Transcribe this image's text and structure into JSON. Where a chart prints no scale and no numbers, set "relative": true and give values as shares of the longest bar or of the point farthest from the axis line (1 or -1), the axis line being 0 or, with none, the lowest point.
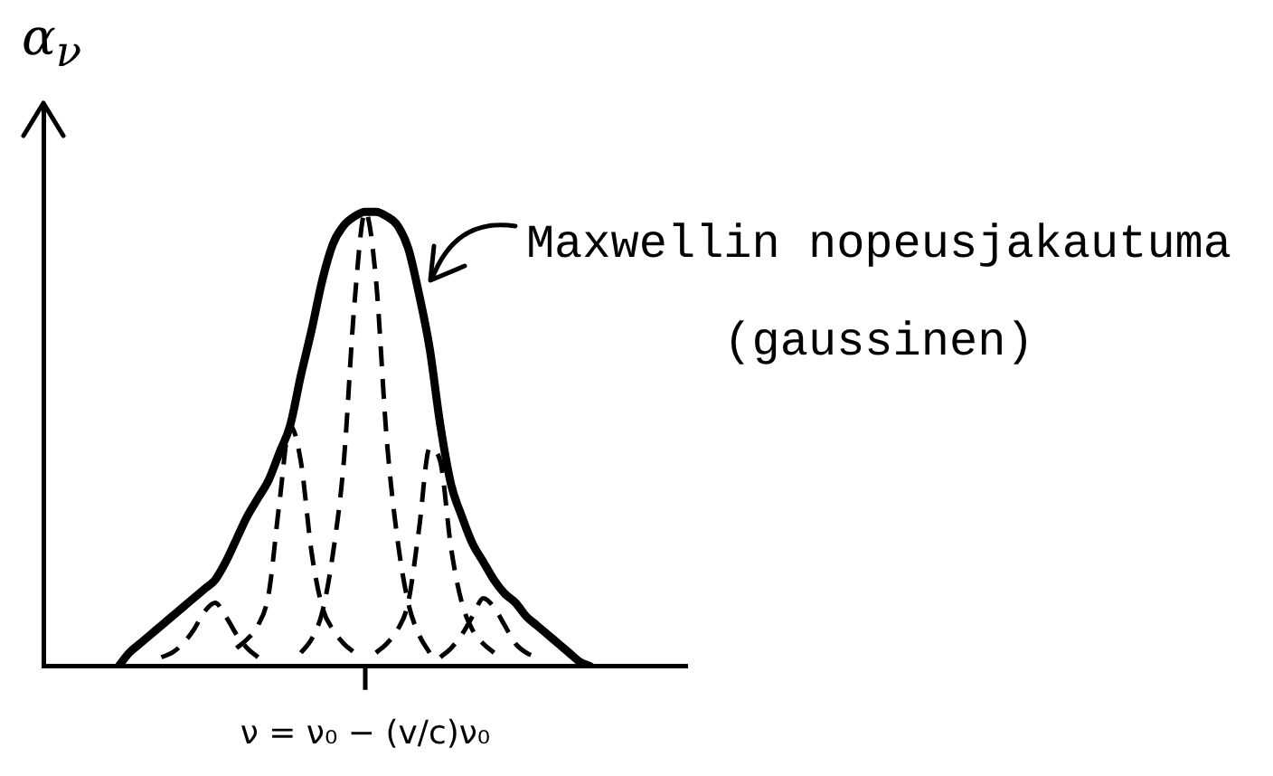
{
  "chart_data": {
    "type": "line",
    "relative": true,
    "ylabel": "α$_{ν}$",
    "xlabel": "ν = ν₀ − (v/c)ν₀",
    "annotations": [
      "Maxwellin nopeusjakautuma (gaussinen)"
    ],
    "marker": "none",
    "legend": false,
    "categories": [
      null,
      null,
      null,
      null,
      null,
      null,
      null,
      null,
      null,
      null,
      null,
      null,
      null,
      null,
      null,
      null,
      null,
      null,
      null,
      null,
      null,
      null,
      null,
      null,
      null,
      null,
      null,
      null,
      null,
      null,
      null,
      null,
      null,
      null,
      null,
      null,
      null,
      null,
      null,
      null,
      null,
      null,
      null,
      null,
      null,
      null,
      null,
      null,
      null,
      null,
      null,
      null,
      null,
      null,
      null,
      null,
      null,
      null,
      null,
      null,
      null
    ],
    "series": [
      {
        "color": "#000000",
        "line_style": "dashed",
        "values": [
          null,
          null,
          null,
          null,
          null,
          null,
          null,
          null,
          null,
          null,
          null,
          0.02,
          0.03,
          0.05,
          0.08,
          0.12,
          0.14,
          0.11,
          0.07,
          0.04,
          0.02,
          null,
          null,
          null,
          null,
          null,
          null,
          null,
          null,
          null,
          null,
          null,
          null,
          null,
          null,
          null,
          null,
          null,
          null,
          null,
          null,
          null,
          null,
          null,
          null,
          null,
          null,
          null,
          null,
          null,
          null,
          null,
          null,
          null,
          null,
          null,
          null,
          null,
          null,
          null,
          null
        ]
      },
      {
        "color": "#000000",
        "line_style": "dashed",
        "values": [
          null,
          null,
          null,
          null,
          null,
          null,
          null,
          null,
          null,
          null,
          null,
          null,
          null,
          null,
          null,
          null,
          null,
          null,
          0.04,
          0.06,
          0.09,
          0.16,
          0.36,
          0.53,
          0.45,
          0.25,
          0.13,
          0.08,
          0.05,
          0.03,
          null,
          null,
          null,
          null,
          null,
          null,
          null,
          null,
          null,
          null,
          null,
          null,
          null,
          null,
          null,
          null,
          null,
          null,
          null,
          null,
          null,
          null,
          null,
          null,
          null,
          null,
          null,
          null,
          null,
          null,
          null
        ]
      },
      {
        "color": "#000000",
        "line_style": "dashed",
        "values": [
          null,
          null,
          null,
          null,
          null,
          null,
          null,
          null,
          null,
          null,
          null,
          null,
          null,
          null,
          null,
          null,
          null,
          null,
          null,
          null,
          null,
          null,
          null,
          null,
          0.03,
          0.06,
          0.12,
          0.25,
          0.45,
          0.8,
          1,
          0.85,
          0.5,
          0.28,
          0.14,
          0.07,
          0.03,
          null,
          null,
          null,
          null,
          null,
          null,
          null,
          null,
          null,
          null,
          null,
          null,
          null,
          null,
          null,
          null,
          null,
          null,
          null,
          null,
          null,
          null,
          null,
          null
        ]
      },
      {
        "color": "#000000",
        "line_style": "dashed",
        "values": [
          null,
          null,
          null,
          null,
          null,
          null,
          null,
          null,
          null,
          null,
          null,
          null,
          null,
          null,
          null,
          null,
          null,
          null,
          null,
          null,
          null,
          null,
          null,
          null,
          null,
          null,
          null,
          null,
          null,
          null,
          null,
          0.03,
          0.05,
          0.08,
          0.14,
          0.3,
          0.48,
          0.45,
          0.26,
          0.14,
          0.08,
          0.05,
          0.03,
          null,
          null,
          null,
          null,
          null,
          null,
          null,
          null,
          null,
          null,
          null,
          null,
          null,
          null,
          null,
          null,
          null,
          null
        ]
      },
      {
        "color": "#000000",
        "line_style": "dashed",
        "values": [
          null,
          null,
          null,
          null,
          null,
          null,
          null,
          null,
          null,
          null,
          null,
          null,
          null,
          null,
          null,
          null,
          null,
          null,
          null,
          null,
          null,
          null,
          null,
          null,
          null,
          null,
          null,
          null,
          null,
          null,
          null,
          null,
          null,
          null,
          null,
          null,
          null,
          0.02,
          0.04,
          0.07,
          0.11,
          0.15,
          0.13,
          0.09,
          0.05,
          0.03,
          0.02,
          null,
          null,
          null,
          null,
          null,
          null,
          null,
          null,
          null,
          null,
          null,
          null,
          null,
          null
        ]
      },
      {
        "color": "#000000",
        "line_style": "solid",
        "values": [
          null,
          null,
          null,
          null,
          null,
          null,
          null,
          0,
          0.03,
          0.05,
          0.07,
          0.09,
          0.11,
          0.13,
          0.15,
          0.17,
          0.19,
          0.23,
          0.28,
          0.33,
          0.37,
          0.41,
          0.47,
          0.53,
          0.64,
          0.74,
          0.85,
          0.93,
          0.97,
          0.99,
          1,
          1,
          0.99,
          0.97,
          0.92,
          0.82,
          0.7,
          0.53,
          0.4,
          0.33,
          0.27,
          0.23,
          0.19,
          0.16,
          0.14,
          0.11,
          0.09,
          0.07,
          0.05,
          0.03,
          0.01,
          0,
          null,
          null,
          null,
          null,
          null,
          null,
          null,
          null,
          null
        ]
      }
    ]
  }
}
